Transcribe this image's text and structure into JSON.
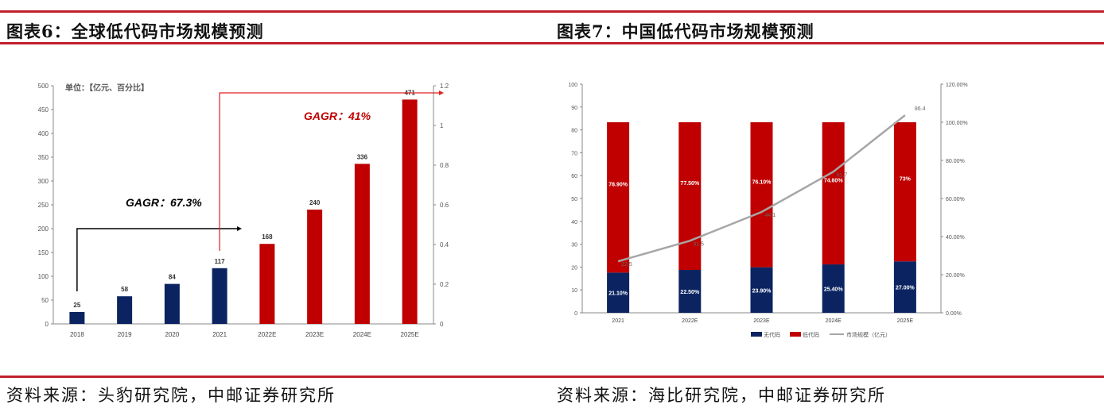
{
  "left_panel": {
    "title": "图表6：全球低代码市场规模预测",
    "source": "资料来源：头豹研究院，中邮证券研究所"
  },
  "right_panel": {
    "title": "图表7：中国低代码市场规模预测",
    "source": "资料来源：海比研究院，中邮证券研究所"
  },
  "colors": {
    "navy": "#0b2461",
    "red": "#c00000",
    "gray": "#a6a6a6",
    "rule": "#c0202a"
  },
  "chart_data": [
    {
      "type": "bar",
      "unit_note": "单位：【亿元、百分比】",
      "categories": [
        "2018",
        "2019",
        "2020",
        "2021",
        "2022E",
        "2023E",
        "2024E",
        "2025E"
      ],
      "values": [
        25,
        58,
        84,
        117,
        168,
        240,
        336,
        471
      ],
      "bar_colors": [
        "#0b2461",
        "#0b2461",
        "#0b2461",
        "#0b2461",
        "#c00000",
        "#c00000",
        "#c00000",
        "#c00000"
      ],
      "ylim": [
        0,
        500
      ],
      "yticks": [
        "0",
        "50",
        "100",
        "150",
        "200",
        "250",
        "300",
        "350",
        "400",
        "450",
        "500"
      ],
      "y2lim": [
        0,
        1.2
      ],
      "y2ticks": [
        "0",
        "0.2",
        "0.4",
        "0.6",
        "0.8",
        "1",
        "1.2"
      ],
      "annotations": [
        {
          "text": "GAGR：67.3%",
          "from": "2018",
          "to": "2021",
          "color": "#000000"
        },
        {
          "text": "GAGR：41%",
          "from": "2021",
          "to": "2025E",
          "color": "#c00000"
        }
      ],
      "grid": false
    },
    {
      "type": "bar",
      "stacked": true,
      "categories": [
        "2021",
        "2022E",
        "2023E",
        "2024E",
        "2025E"
      ],
      "series": [
        {
          "name": "无代码",
          "values": [
            21.1,
            22.5,
            23.9,
            25.4,
            27.0
          ],
          "labels": [
            "21.10%",
            "22.50%",
            "23.90%",
            "25.40%",
            "27.00%"
          ],
          "color": "#0b2461",
          "axis": "right"
        },
        {
          "name": "低代码",
          "values": [
            78.9,
            77.5,
            76.1,
            74.6,
            73.0
          ],
          "labels": [
            "78.90%",
            "77.50%",
            "76.10%",
            "74.60%",
            "73%"
          ],
          "color": "#c00000",
          "axis": "right"
        },
        {
          "name": "市场规模（亿元）",
          "type": "line",
          "values": [
            22.5,
            31.5,
            44.1,
            61.7,
            86.4
          ],
          "labels": [
            "22.5",
            "31.5",
            "44.1",
            "61.7",
            "86.4"
          ],
          "color": "#a6a6a6",
          "axis": "left"
        }
      ],
      "ylim": [
        0,
        100
      ],
      "yticks": [
        "0",
        "10",
        "20",
        "30",
        "40",
        "50",
        "60",
        "70",
        "80",
        "90",
        "100"
      ],
      "y2lim": [
        0,
        120
      ],
      "y2ticks": [
        "0.00%",
        "20.00%",
        "40.00%",
        "60.00%",
        "80.00%",
        "100.00%",
        "120.00%"
      ],
      "legend": "bottom",
      "grid": false
    }
  ]
}
